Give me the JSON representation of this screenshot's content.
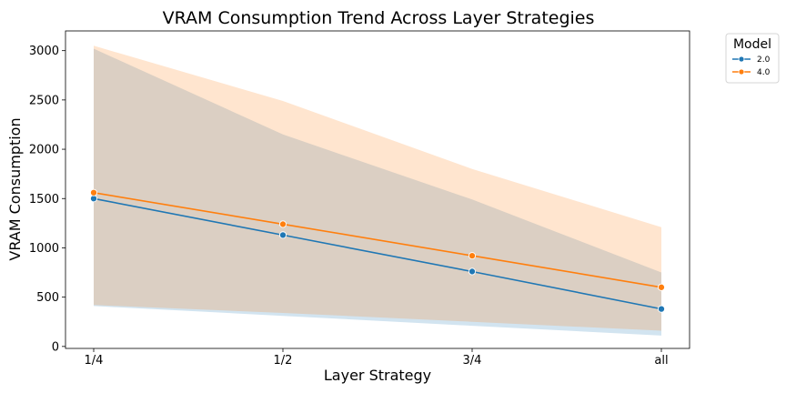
{
  "chart_data": {
    "type": "line",
    "title": "VRAM Consumption Trend Across Layer Strategies",
    "xlabel": "Layer Strategy",
    "ylabel": "VRAM Consumption",
    "categories": [
      "1/4",
      "1/2",
      "3/4",
      "all"
    ],
    "ylim": [
      -20,
      3200
    ],
    "yticks": [
      0,
      500,
      1000,
      1500,
      2000,
      2500,
      3000
    ],
    "grid": false,
    "legend": {
      "title": "Model",
      "placement": "outside-top-right"
    },
    "series": [
      {
        "name": "2.0",
        "color": "#1f77b4",
        "values": [
          1500,
          1130,
          760,
          380
        ],
        "band_lower": [
          410,
          310,
          210,
          110
        ],
        "band_upper": [
          3020,
          2150,
          1490,
          750
        ]
      },
      {
        "name": "4.0",
        "color": "#ff7f0e",
        "values": [
          1560,
          1240,
          920,
          600
        ],
        "band_lower": [
          420,
          340,
          250,
          160
        ],
        "band_upper": [
          3050,
          2490,
          1800,
          1210
        ]
      }
    ]
  }
}
